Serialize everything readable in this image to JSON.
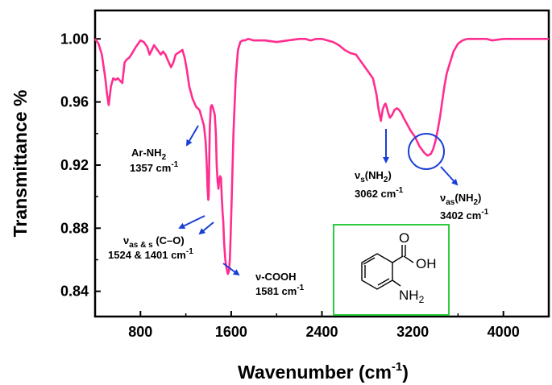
{
  "chart_data": {
    "type": "line",
    "xlabel": "Wavenumber (cm",
    "xlabel_sup": "-1",
    "xlabel_close": ")",
    "ylabel": "Transmittance %",
    "xlim": [
      400,
      4400
    ],
    "ylim": [
      0.824,
      1.018
    ],
    "xticks": [
      800,
      1600,
      2400,
      3200,
      4000
    ],
    "yticks": [
      0.84,
      0.88,
      0.92,
      0.96,
      1.0
    ],
    "ytick_labels": [
      "0.84",
      "0.88",
      "0.92",
      "0.96",
      "1.00"
    ],
    "line_color": "#ff2d8f",
    "annotation_color": "#1a3fd6",
    "inset_border_color": "#2ecc40",
    "series": [
      {
        "x": [
          400,
          430,
          460,
          490,
          505,
          520,
          540,
          560,
          580,
          600,
          640,
          660,
          680,
          700,
          720,
          760,
          800,
          830,
          860,
          880,
          900,
          920,
          950,
          980,
          1000,
          1020,
          1050,
          1070,
          1090,
          1110,
          1130,
          1150,
          1170,
          1190,
          1210,
          1230,
          1260,
          1290,
          1320,
          1340,
          1360,
          1375,
          1385,
          1392,
          1398,
          1402,
          1406,
          1412,
          1420,
          1430,
          1440,
          1455,
          1465,
          1472,
          1480,
          1488,
          1495,
          1502,
          1510,
          1517,
          1524,
          1530,
          1538,
          1548,
          1558,
          1570,
          1576,
          1581,
          1588,
          1595,
          1605,
          1620,
          1640,
          1660,
          1680,
          1700,
          1720,
          1750,
          1800,
          1900,
          2000,
          2100,
          2200,
          2250,
          2300,
          2350,
          2400,
          2450,
          2500,
          2550,
          2600,
          2650,
          2700,
          2750,
          2800,
          2850,
          2880,
          2900,
          2920,
          2935,
          2950,
          2960,
          2970,
          2985,
          3000,
          3020,
          3040,
          3062,
          3080,
          3100,
          3120,
          3150,
          3180,
          3220,
          3260,
          3300,
          3330,
          3360,
          3380,
          3400,
          3420,
          3440,
          3460,
          3480,
          3500,
          3530,
          3560,
          3600,
          3640,
          3680,
          3720,
          3760,
          3800,
          3850,
          3900,
          4000,
          4100,
          4200,
          4300,
          4400
        ],
        "y": [
          1.0,
          0.997,
          0.99,
          0.975,
          0.965,
          0.958,
          0.97,
          0.975,
          0.974,
          0.975,
          0.972,
          0.985,
          0.987,
          0.988,
          0.99,
          0.995,
          0.999,
          0.998,
          0.995,
          0.99,
          0.993,
          0.996,
          0.993,
          0.99,
          0.992,
          0.99,
          0.985,
          0.982,
          0.985,
          0.99,
          0.991,
          0.992,
          0.993,
          0.988,
          0.98,
          0.97,
          0.962,
          0.957,
          0.955,
          0.95,
          0.945,
          0.935,
          0.92,
          0.905,
          0.898,
          0.9,
          0.92,
          0.945,
          0.957,
          0.958,
          0.956,
          0.952,
          0.94,
          0.92,
          0.91,
          0.905,
          0.911,
          0.913,
          0.912,
          0.9,
          0.89,
          0.885,
          0.87,
          0.86,
          0.855,
          0.851,
          0.852,
          0.853,
          0.86,
          0.875,
          0.9,
          0.94,
          0.975,
          0.993,
          0.998,
          0.999,
          0.999,
          1.0,
          0.999,
          0.999,
          0.998,
          0.999,
          1.0,
          1.0,
          0.999,
          1.0,
          1.0,
          0.999,
          0.998,
          0.996,
          0.993,
          0.991,
          0.99,
          0.985,
          0.98,
          0.975,
          0.965,
          0.955,
          0.948,
          0.955,
          0.958,
          0.959,
          0.957,
          0.953,
          0.95,
          0.952,
          0.955,
          0.956,
          0.955,
          0.953,
          0.95,
          0.946,
          0.942,
          0.938,
          0.932,
          0.928,
          0.926,
          0.927,
          0.93,
          0.935,
          0.942,
          0.95,
          0.96,
          0.97,
          0.978,
          0.985,
          0.992,
          0.997,
          0.999,
          1.0,
          1.0,
          1.0,
          1.0,
          1.0,
          0.999,
          1.0,
          1.0,
          1.0,
          1.0,
          1.0
        ]
      }
    ],
    "annotations": [
      {
        "id": "ar-nh2",
        "text": "Ar-NH",
        "sub": "2",
        "value": "1357 cm",
        "value_sup": "-1"
      },
      {
        "id": "c-o",
        "text": "ν",
        "sub": "as & s",
        "text_after": " (C–O)",
        "value": "1524 & 1401 cm",
        "value_sup": "-1"
      },
      {
        "id": "cooh",
        "text": "ν-COOH",
        "value": "1581 cm",
        "value_sup": "-1"
      },
      {
        "id": "nh2-s",
        "text": "ν",
        "sub": "s",
        "text_after": "(NH",
        "sub2": "2",
        "text_after2": ")",
        "value": "3062 cm",
        "value_sup": "-1"
      },
      {
        "id": "nh2-as",
        "text": "ν",
        "sub": "as",
        "text_after": "(NH",
        "sub2": "2",
        "text_after2": ")",
        "value": "3402 cm",
        "value_sup": "-1"
      }
    ],
    "inset": {
      "oh_label": "OH",
      "o_label": "O",
      "nh_label": "NH",
      "nh_sub": "2"
    }
  }
}
